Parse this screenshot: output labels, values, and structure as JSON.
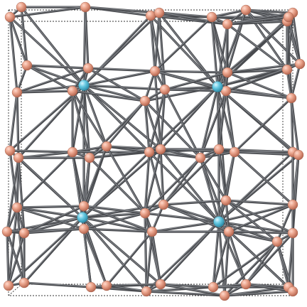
{
  "viewer": {
    "structure": "crystal-structure-ball-and-stick",
    "unit_cell_outline": "dotted",
    "colors": {
      "background": "#ffffff",
      "bond": "#4a4c50",
      "atom_small": "#e29a82",
      "atom_large": "#5bc3dc"
    },
    "atom_species": [
      {
        "role": "minority",
        "color": "#5bc3dc",
        "count_visible": 4
      },
      {
        "role": "majority",
        "color": "#e29a82",
        "count_visible": 58
      }
    ]
  }
}
